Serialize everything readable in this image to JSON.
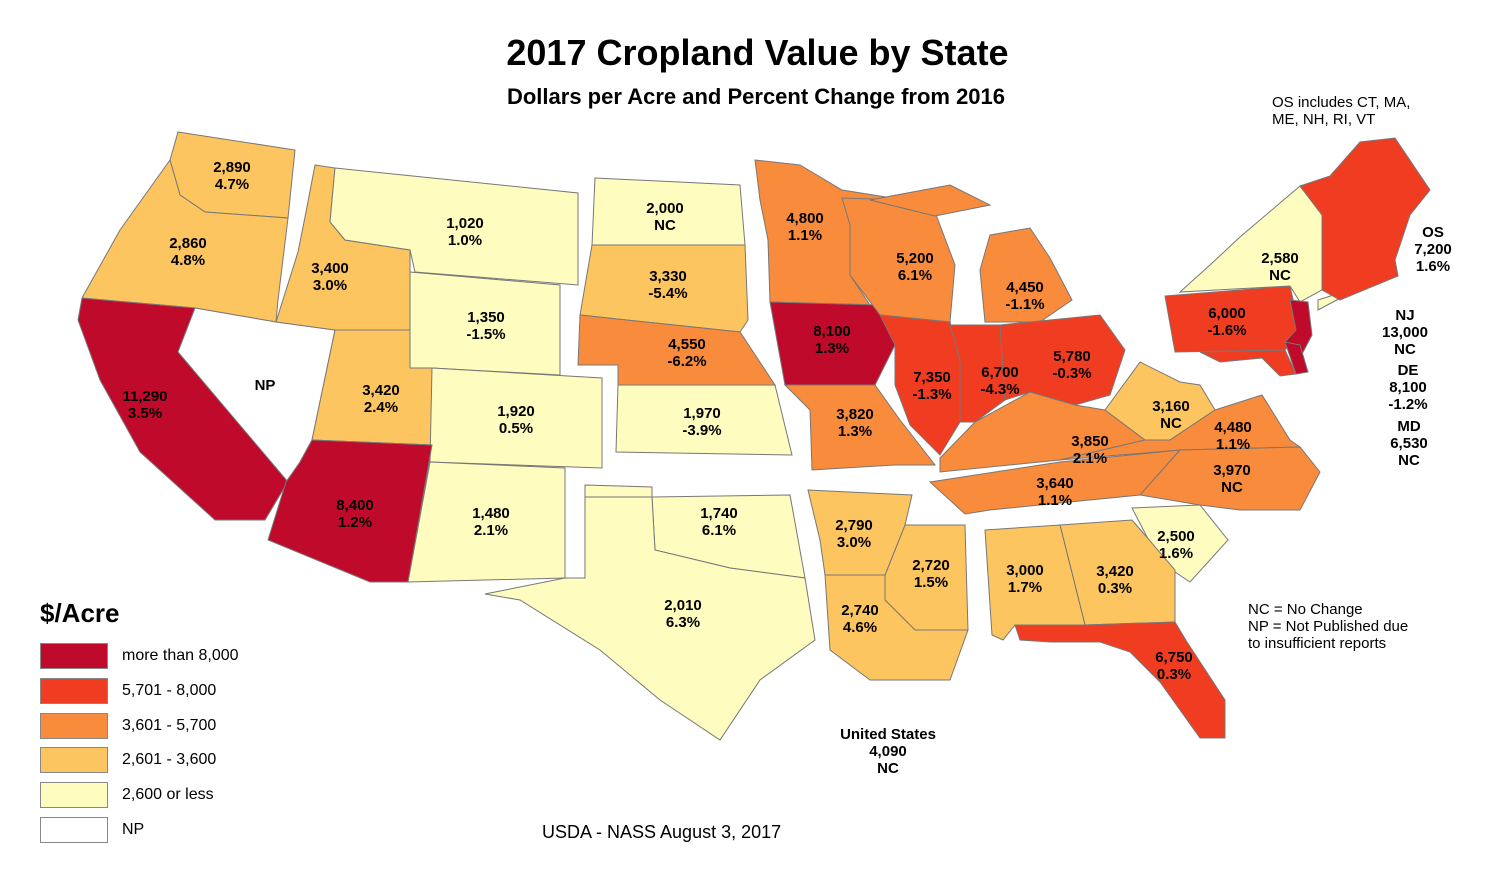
{
  "title": "2017 Cropland Value by State",
  "subtitle": "Dollars per Acre and Percent Change from 2016",
  "os_note": [
    "OS includes CT, MA,",
    "ME, NH, RI, VT"
  ],
  "legend": {
    "title": "$/Acre",
    "items": [
      {
        "label": "more than 8,000",
        "color": "#bf0a2b"
      },
      {
        "label": "5,701 - 8,000",
        "color": "#f03d22"
      },
      {
        "label": "3,601 - 5,700",
        "color": "#f98c3c"
      },
      {
        "label": "2,601 - 3,600",
        "color": "#fdc560"
      },
      {
        "label": "2,600 or less",
        "color": "#fefcbf"
      },
      {
        "label": "NP",
        "color": "#ffffff"
      }
    ]
  },
  "states": [
    {
      "value": "2,890",
      "change": "4.7%",
      "class": 3
    },
    {
      "value": "2,860",
      "change": "4.8%",
      "class": 3
    },
    {
      "value": "11,290",
      "change": "3.5%",
      "class": 0
    },
    {
      "value": "NP",
      "change": "",
      "class": 5
    },
    {
      "value": "3,400",
      "change": "3.0%",
      "class": 3
    },
    {
      "value": "1,020",
      "change": "1.0%",
      "class": 4
    },
    {
      "value": "1,350",
      "change": "-1.5%",
      "class": 4
    },
    {
      "value": "3,420",
      "change": "2.4%",
      "class": 3
    },
    {
      "value": "1,920",
      "change": "0.5%",
      "class": 4
    },
    {
      "value": "8,400",
      "change": "1.2%",
      "class": 0
    },
    {
      "value": "1,480",
      "change": "2.1%",
      "class": 4
    },
    {
      "value": "2,000",
      "change": "NC",
      "class": 4
    },
    {
      "value": "3,330",
      "change": "-5.4%",
      "class": 3
    },
    {
      "value": "4,550",
      "change": "-6.2%",
      "class": 2
    },
    {
      "value": "1,970",
      "change": "-3.9%",
      "class": 4
    },
    {
      "value": "1,740",
      "change": "6.1%",
      "class": 4
    },
    {
      "value": "2,010",
      "change": "6.3%",
      "class": 4
    },
    {
      "value": "4,800",
      "change": "1.1%",
      "class": 2
    },
    {
      "value": "8,100",
      "change": "1.3%",
      "class": 0
    },
    {
      "value": "3,820",
      "change": "1.3%",
      "class": 2
    },
    {
      "value": "5,200",
      "change": "6.1%",
      "class": 2
    },
    {
      "value": "4,450",
      "change": "-1.1%",
      "class": 2
    },
    {
      "value": "7,350",
      "change": "-1.3%",
      "class": 1
    },
    {
      "value": "6,700",
      "change": "-4.3%",
      "class": 1
    },
    {
      "value": "5,780",
      "change": "-0.3%",
      "class": 1
    },
    {
      "value": "3,850",
      "change": "2.1%",
      "class": 2
    },
    {
      "value": "3,640",
      "change": "1.1%",
      "class": 2
    },
    {
      "value": "3,160",
      "change": "NC",
      "class": 3
    },
    {
      "value": "4,480",
      "change": "1.1%",
      "class": 2
    },
    {
      "value": "3,970",
      "change": "NC",
      "class": 2
    },
    {
      "value": "2,500",
      "change": "1.6%",
      "class": 4
    },
    {
      "value": "3,420",
      "change": "0.3%",
      "class": 3
    },
    {
      "value": "3,000",
      "change": "1.7%",
      "class": 3
    },
    {
      "value": "2,720",
      "change": "1.5%",
      "class": 3
    },
    {
      "value": "2,790",
      "change": "3.0%",
      "class": 3
    },
    {
      "value": "2,740",
      "change": "4.6%",
      "class": 3
    },
    {
      "value": "6,750",
      "change": "0.3%",
      "class": 1
    },
    {
      "value": "6,000",
      "change": "-1.6%",
      "class": 1
    },
    {
      "value": "2,580",
      "change": "NC",
      "class": 4
    },
    {
      "value": "",
      "change": "",
      "class": 0
    },
    {
      "value": "",
      "change": "",
      "class": 0
    },
    {
      "value": "",
      "change": "",
      "class": 1
    },
    {
      "value": "",
      "change": "",
      "class": 1
    }
  ],
  "callouts": {
    "os": {
      "name": "OS",
      "value": "7,200",
      "change": "1.6%"
    },
    "nj": {
      "name": "NJ",
      "value": "13,000",
      "change": "NC"
    },
    "de": {
      "name": "DE",
      "value": "8,100",
      "change": "-1.2%"
    },
    "md": {
      "name": "MD",
      "value": "6,530",
      "change": "NC"
    }
  },
  "us": {
    "name": "United States",
    "value": "4,090",
    "change": "NC"
  },
  "notes": [
    "NC = No Change",
    "NP = Not Published due",
    "to insufficient reports"
  ],
  "source": "USDA - NASS August 3, 2017"
}
